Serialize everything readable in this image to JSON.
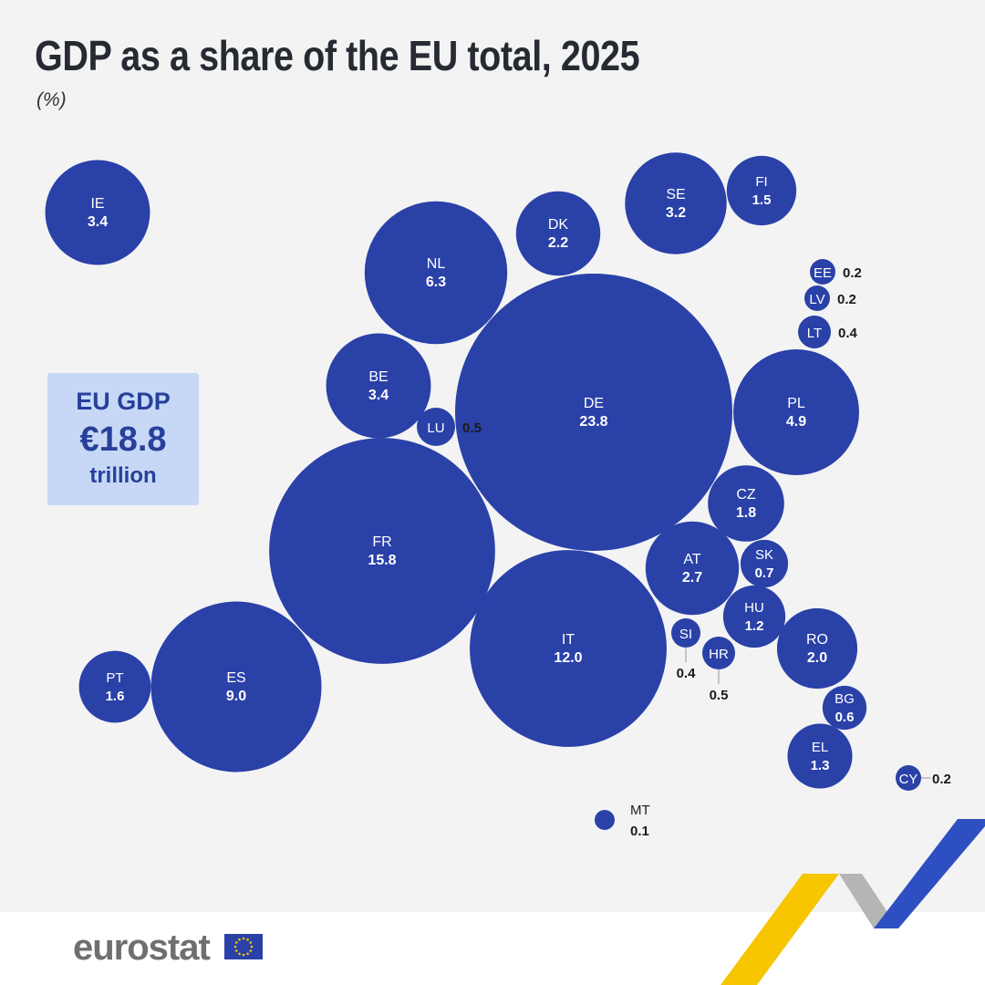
{
  "title": "GDP as a share of the EU total, 2025",
  "subtitle": "(%)",
  "gdp_box": {
    "label": "EU GDP",
    "value": "€18.8",
    "unit": "trillion"
  },
  "branding": {
    "logo": "eurostat",
    "flag": "eu-flag-icon"
  },
  "colors": {
    "bubble": "#2a41a8",
    "box": "#c7d8f7",
    "yellow": "#f7c600",
    "blue_stripe": "#2e4fc2",
    "grey_stripe": "#b5b5b5"
  },
  "chart_data": {
    "type": "bubble",
    "title": "GDP as a share of the EU total, 2025",
    "unit": "%",
    "points": [
      {
        "code": "DE",
        "value": 23.8
      },
      {
        "code": "FR",
        "value": 15.8
      },
      {
        "code": "IT",
        "value": 12.0
      },
      {
        "code": "ES",
        "value": 9.0
      },
      {
        "code": "NL",
        "value": 6.3
      },
      {
        "code": "PL",
        "value": 4.9
      },
      {
        "code": "IE",
        "value": 3.4
      },
      {
        "code": "BE",
        "value": 3.4
      },
      {
        "code": "SE",
        "value": 3.2
      },
      {
        "code": "AT",
        "value": 2.7
      },
      {
        "code": "DK",
        "value": 2.2
      },
      {
        "code": "RO",
        "value": 2.0
      },
      {
        "code": "CZ",
        "value": 1.8
      },
      {
        "code": "PT",
        "value": 1.6
      },
      {
        "code": "FI",
        "value": 1.5
      },
      {
        "code": "EL",
        "value": 1.3
      },
      {
        "code": "HU",
        "value": 1.2
      },
      {
        "code": "SK",
        "value": 0.7
      },
      {
        "code": "BG",
        "value": 0.6
      },
      {
        "code": "LU",
        "value": 0.5
      },
      {
        "code": "HR",
        "value": 0.5
      },
      {
        "code": "SI",
        "value": 0.4
      },
      {
        "code": "LT",
        "value": 0.4
      },
      {
        "code": "EE",
        "value": 0.2
      },
      {
        "code": "LV",
        "value": 0.2
      },
      {
        "code": "CY",
        "value": 0.2
      },
      {
        "code": "MT",
        "value": 0.1
      }
    ]
  }
}
